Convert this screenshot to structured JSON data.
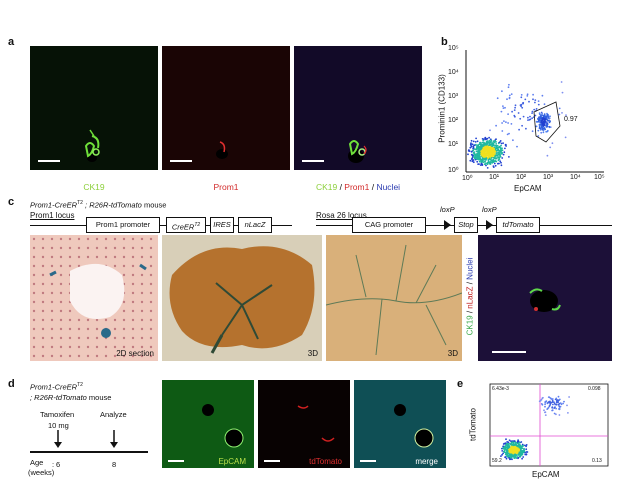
{
  "panels": {
    "a": "a",
    "b": "b",
    "c": "c",
    "d": "d",
    "e": "e"
  },
  "panel_a": {
    "captions": {
      "ck19": "CK19",
      "prom1": "Prom1",
      "merge_ck19": "CK19",
      "merge_sep1": " / ",
      "merge_prom1": "Prom1",
      "merge_sep2": " / ",
      "merge_nuclei": "Nuclei"
    },
    "colors": {
      "green": "#7fd44a",
      "red": "#d22a2a",
      "blue": "#2b3bb0"
    }
  },
  "panel_b": {
    "chart_data": {
      "type": "scatter",
      "xlabel": "EpCAM",
      "ylabel": "Prominin1 (CD133)",
      "xlim": [
        1,
        100000
      ],
      "ylim": [
        1,
        100000
      ],
      "scale": "log",
      "x_ticks": [
        "10⁰",
        "10¹",
        "10²",
        "10³",
        "10⁴",
        "10⁵"
      ],
      "y_ticks": [
        "10⁰",
        "10¹",
        "10²",
        "10³",
        "10⁴",
        "10⁵"
      ],
      "gate_label": "0.97"
    }
  },
  "panel_c": {
    "title_left_italic": "Prom1-CreER",
    "title_left_sup": "T2",
    "title_left_rest_italic": " ; R26R-tdTomato",
    "title_left_plain": " mouse",
    "prom1_locus": "Prom1 locus",
    "prom1_promoter": "Prom1 promoter",
    "creer": "CreER",
    "creer_sup": "T2",
    "ires": "IRES",
    "nlacz": "nLacZ",
    "rosa_locus": "Rosa 26 locus",
    "cag": "CAG promoter",
    "loxp1": "loxP",
    "stop": "Stop",
    "loxp2": "loxP",
    "tdtomato": "tdTomato",
    "img1_label": "2D section",
    "img2_label": "3D",
    "img3_label": "3D",
    "side_ck19": "CK19",
    "side_sep1": " / ",
    "side_nlacz": "nLacZ",
    "side_sep2": " / ",
    "side_nuclei": "Nuclei"
  },
  "panel_d": {
    "mouse_italic1": "Prom1-CreER",
    "mouse_sup": "T2",
    "mouse_italic2": "; R26R-tdTomato",
    "mouse_plain": " mouse",
    "tamoxifen": "Tamoxifen",
    "dose": "10 mg",
    "analyze": "Analyze",
    "age_label": "Age",
    "weeks": "(weeks)",
    "colon": ":",
    "age_6": "6",
    "age_8": "8",
    "cap_epcam": "EpCAM",
    "cap_tdtomato": "tdTomato",
    "cap_merge": "merge"
  },
  "panel_e": {
    "chart_data": {
      "type": "scatter",
      "xlabel": "EpCAM",
      "ylabel": "tdTomato",
      "quadrants": {
        "top_left": "6.43e-3",
        "top_right": "0.098",
        "bottom_left": "59.2",
        "bottom_right": "0.13"
      }
    }
  }
}
